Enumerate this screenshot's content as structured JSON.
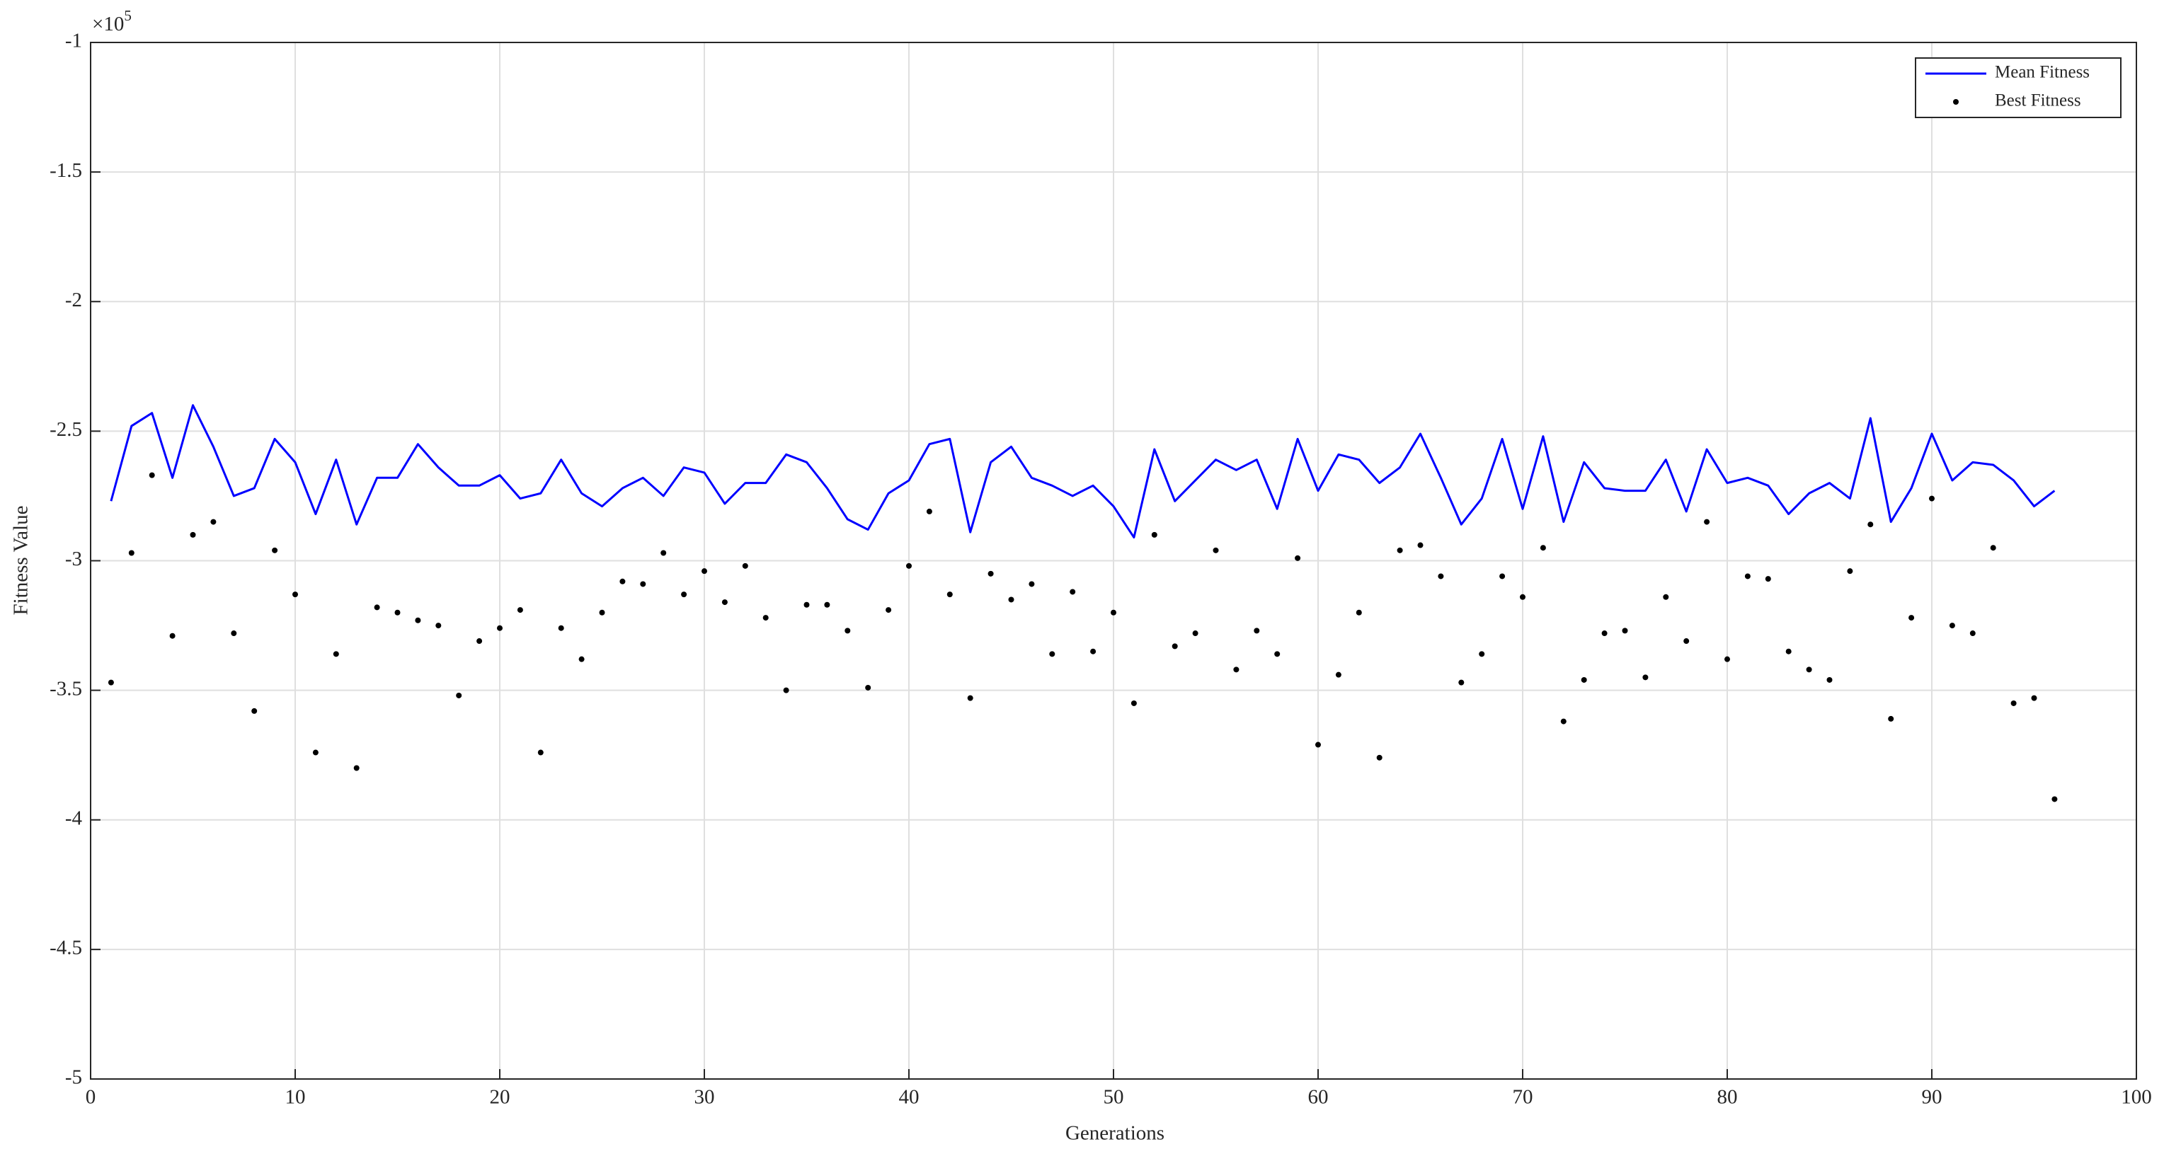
{
  "chart_data": {
    "type": "line",
    "xlabel": "Generations",
    "ylabel": "Fitness Value",
    "y_exponent_label": {
      "base": "×10",
      "exponent": "5"
    },
    "x": [
      1,
      2,
      3,
      4,
      5,
      6,
      7,
      8,
      9,
      10,
      11,
      12,
      13,
      14,
      15,
      16,
      17,
      18,
      19,
      20,
      21,
      22,
      23,
      24,
      25,
      26,
      27,
      28,
      29,
      30,
      31,
      32,
      33,
      34,
      35,
      36,
      37,
      38,
      39,
      40,
      41,
      42,
      43,
      44,
      45,
      46,
      47,
      48,
      49,
      50,
      51,
      52,
      53,
      54,
      55,
      56,
      57,
      58,
      59,
      60,
      61,
      62,
      63,
      64,
      65,
      66,
      67,
      68,
      69,
      70,
      71,
      72,
      73,
      74,
      75,
      76,
      77,
      78,
      79,
      80,
      81,
      82,
      83,
      84,
      85,
      86,
      87,
      88,
      89,
      90,
      91,
      92,
      93,
      94,
      95,
      96
    ],
    "series": [
      {
        "name": "Mean Fitness",
        "color": "#0000ff",
        "mode": "line",
        "values": [
          -2.77,
          -2.48,
          -2.43,
          -2.68,
          -2.4,
          -2.56,
          -2.75,
          -2.72,
          -2.53,
          -2.62,
          -2.82,
          -2.61,
          -2.86,
          -2.68,
          -2.68,
          -2.55,
          -2.64,
          -2.71,
          -2.71,
          -2.67,
          -2.76,
          -2.74,
          -2.61,
          -2.74,
          -2.79,
          -2.72,
          -2.68,
          -2.75,
          -2.64,
          -2.66,
          -2.78,
          -2.7,
          -2.7,
          -2.59,
          -2.62,
          -2.72,
          -2.84,
          -2.88,
          -2.74,
          -2.69,
          -2.55,
          -2.53,
          -2.89,
          -2.62,
          -2.56,
          -2.68,
          -2.71,
          -2.75,
          -2.71,
          -2.79,
          -2.91,
          -2.57,
          -2.77,
          -2.69,
          -2.61,
          -2.65,
          -2.61,
          -2.8,
          -2.53,
          -2.73,
          -2.59,
          -2.61,
          -2.7,
          -2.64,
          -2.51,
          -2.68,
          -2.86,
          -2.76,
          -2.53,
          -2.8,
          -2.52,
          -2.85,
          -2.62,
          -2.72,
          -2.73,
          -2.73,
          -2.61,
          -2.81,
          -2.57,
          -2.7,
          -2.68,
          -2.71,
          -2.82,
          -2.74,
          -2.7,
          -2.76,
          -2.45,
          -2.85,
          -2.72,
          -2.51,
          -2.69,
          -2.62,
          -2.63,
          -2.69,
          -2.79,
          -2.73
        ]
      },
      {
        "name": "Best Fitness",
        "color": "#000000",
        "mode": "markers",
        "values": [
          -3.47,
          -2.97,
          -2.67,
          -3.29,
          -2.9,
          -2.85,
          -3.28,
          -3.58,
          -2.96,
          -3.13,
          -3.74,
          -3.36,
          -3.8,
          -3.18,
          -3.2,
          -3.23,
          -3.25,
          -3.52,
          -3.31,
          -3.26,
          -3.19,
          -3.74,
          -3.26,
          -3.38,
          -3.2,
          -3.08,
          -3.09,
          -2.97,
          -3.13,
          -3.04,
          -3.16,
          -3.02,
          -3.22,
          -3.5,
          -3.17,
          -3.17,
          -3.27,
          -3.49,
          -3.19,
          -3.02,
          -2.81,
          -3.13,
          -3.53,
          -3.05,
          -3.15,
          -3.09,
          -3.36,
          -3.12,
          -3.35,
          -3.2,
          -3.55,
          -2.9,
          -3.33,
          -3.28,
          -2.96,
          -3.42,
          -3.27,
          -3.36,
          -2.99,
          -3.71,
          -3.44,
          -3.2,
          -3.76,
          -2.96,
          -2.94,
          -3.06,
          -3.47,
          -3.36,
          -3.06,
          -3.14,
          -2.95,
          -3.62,
          -3.46,
          -3.28,
          -3.27,
          -3.45,
          -3.14,
          -3.31,
          -2.85,
          -3.38,
          -3.06,
          -3.07,
          -3.35,
          -3.42,
          -3.46,
          -3.04,
          -2.86,
          -3.61,
          -3.22,
          -2.76,
          -3.25,
          -3.28,
          -2.95,
          -3.55,
          -3.53,
          -3.92
        ]
      }
    ],
    "xlim": [
      0,
      100
    ],
    "xticks": [
      0,
      10,
      20,
      30,
      40,
      50,
      60,
      70,
      80,
      90,
      100
    ],
    "ylim": [
      -5,
      -1
    ],
    "yticks": [
      -5,
      -4.5,
      -4,
      -3.5,
      -3,
      -2.5,
      -2,
      -1.5,
      -1
    ],
    "grid": true,
    "legend": "northeast"
  }
}
